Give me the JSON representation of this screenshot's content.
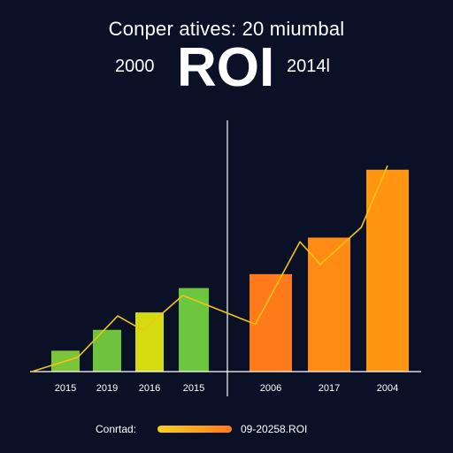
{
  "header": {
    "title": "Conper atives: 20 miumbal",
    "year_left": "2000",
    "big_label": "ROI",
    "year_right": "2014l"
  },
  "legend": {
    "left_label": "Conrtad:",
    "right_label": "09-20258.ROI"
  },
  "colors": {
    "background": "#0a1026",
    "line": "#f2c318",
    "axis": "#ffffff",
    "divider": "#c9ccd8"
  },
  "chart_data": {
    "type": "bar",
    "categories": [
      "2015",
      "2019",
      "2016",
      "2015",
      "2006",
      "2017",
      "2004"
    ],
    "values": [
      12,
      24,
      34,
      48,
      56,
      77,
      116
    ],
    "bar_colors": [
      "#7cc53a",
      "#6fc23c",
      "#d4dc10",
      "#6cc63e",
      "#ff7a1a",
      "#ff8a14",
      "#ff9510"
    ],
    "ylim": [
      0,
      122
    ],
    "grid": false,
    "legend_position": "bottom",
    "line": {
      "x": [
        0,
        0.75,
        1.7,
        2.3,
        3.2,
        4.25,
        4.95,
        5.3,
        6.0,
        6.8
      ],
      "values": [
        0,
        7,
        27,
        20,
        37,
        23,
        63,
        52,
        70,
        100
      ]
    }
  }
}
